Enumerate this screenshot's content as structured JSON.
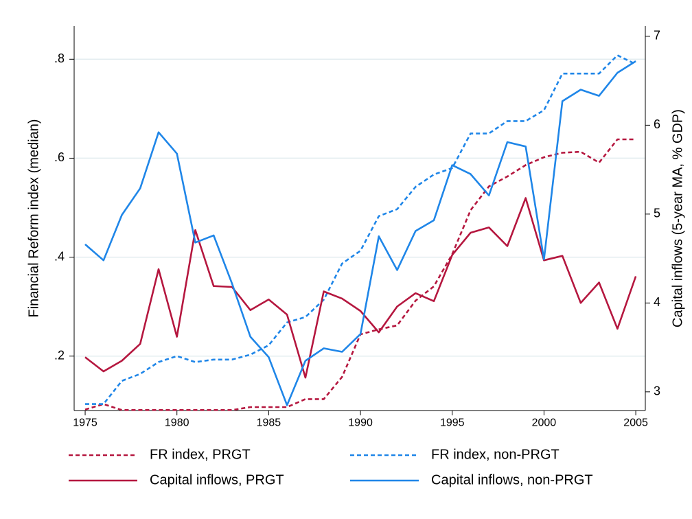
{
  "chart_data": {
    "type": "line",
    "x": [
      1975,
      1976,
      1977,
      1978,
      1979,
      1980,
      1981,
      1982,
      1983,
      1984,
      1985,
      1986,
      1987,
      1988,
      1989,
      1990,
      1991,
      1992,
      1993,
      1994,
      1995,
      1996,
      1997,
      1998,
      1999,
      2000,
      2001,
      2002,
      2003,
      2004,
      2005
    ],
    "xlim": [
      1974.4,
      2005.52
    ],
    "xticks": [
      1975,
      1980,
      1985,
      1990,
      1995,
      2000,
      2005
    ],
    "ylabel": "Financial Reform index (median)",
    "ylim": [
      0.09,
      0.867
    ],
    "yticks": [
      {
        "value": 0.2,
        "label": ".2"
      },
      {
        "value": 0.4,
        "label": ".4"
      },
      {
        "value": 0.6,
        "label": ".6"
      },
      {
        "value": 0.8,
        "label": ".8"
      }
    ],
    "y2label": "Capital inflows (5-year MA, % GDP)",
    "y2lim": [
      2.79,
      7.115
    ],
    "y2ticks": [
      3,
      4,
      5,
      6,
      7
    ],
    "grid": true,
    "series": [
      {
        "name": "FR index, PRGT",
        "color": "#b5173f",
        "line_style": "dashed",
        "values": [
          0.092,
          0.103,
          0.091,
          0.091,
          0.091,
          0.091,
          0.091,
          0.091,
          0.091,
          0.097,
          0.097,
          0.097,
          0.113,
          0.113,
          0.158,
          0.244,
          0.254,
          0.262,
          0.312,
          0.341,
          0.406,
          0.495,
          0.543,
          0.563,
          0.586,
          0.602,
          0.611,
          0.613,
          0.591,
          0.638,
          0.638
        ]
      },
      {
        "name": "FR index, non-PRGT",
        "color": "#1f86e8",
        "line_style": "dashed",
        "values": [
          0.103,
          0.103,
          0.15,
          0.164,
          0.188,
          0.2,
          0.188,
          0.193,
          0.193,
          0.203,
          0.222,
          0.268,
          0.279,
          0.314,
          0.387,
          0.413,
          0.483,
          0.497,
          0.542,
          0.567,
          0.58,
          0.65,
          0.65,
          0.675,
          0.675,
          0.697,
          0.771,
          0.771,
          0.771,
          0.808,
          0.79
        ]
      },
      {
        "name": "Capital inflows, PRGT",
        "color": "#b5173f",
        "line_style": "solid",
        "axis": "y2",
        "values": [
          3.39,
          3.23,
          3.35,
          3.54,
          4.38,
          3.62,
          4.82,
          4.19,
          4.18,
          3.92,
          4.04,
          3.87,
          3.16,
          4.13,
          4.05,
          3.91,
          3.67,
          3.96,
          4.11,
          4.02,
          4.54,
          4.79,
          4.85,
          4.64,
          5.18,
          4.48,
          4.53,
          4.0,
          4.23,
          3.71,
          4.3
        ]
      },
      {
        "name": "Capital inflows, non-PRGT",
        "color": "#1f86e8",
        "line_style": "solid",
        "axis": "y2",
        "values": [
          4.66,
          4.48,
          4.99,
          5.29,
          5.92,
          5.68,
          4.68,
          4.76,
          4.22,
          3.62,
          3.39,
          2.85,
          3.35,
          3.49,
          3.45,
          3.65,
          4.75,
          4.37,
          4.81,
          4.93,
          5.55,
          5.45,
          5.21,
          5.81,
          5.76,
          4.49,
          6.27,
          6.4,
          6.33,
          6.59,
          6.72
        ]
      }
    ]
  }
}
